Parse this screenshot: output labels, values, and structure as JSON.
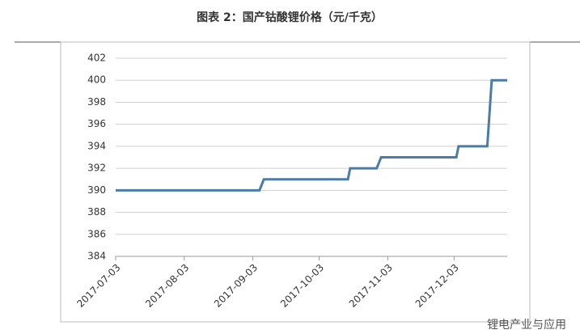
{
  "chart_data": {
    "type": "line",
    "title": "图表 2：国产钴酸锂价格（元/千克）",
    "x": [
      "2017-07-03",
      "2017-09-06",
      "2017-09-08",
      "2017-10-16",
      "2017-10-17",
      "2017-10-29",
      "2017-10-31",
      "2017-12-04",
      "2017-12-05",
      "2017-12-18",
      "2017-12-20",
      "2017-12-27"
    ],
    "values": [
      390,
      390,
      391,
      391,
      392,
      392,
      393,
      393,
      394,
      394,
      400,
      400
    ],
    "color": "#4a7ca8",
    "xlim": [
      "2017-07-03",
      "2017-12-27"
    ],
    "xticks": [
      "2017-07-03",
      "2017-08-03",
      "2017-09-03",
      "2017-10-03",
      "2017-11-03",
      "2017-12-03"
    ],
    "ylim": [
      384,
      402
    ],
    "yticks": [
      384,
      386,
      388,
      390,
      392,
      394,
      396,
      398,
      400,
      402
    ],
    "grid": true,
    "watermark": "锂电产业与应用"
  }
}
